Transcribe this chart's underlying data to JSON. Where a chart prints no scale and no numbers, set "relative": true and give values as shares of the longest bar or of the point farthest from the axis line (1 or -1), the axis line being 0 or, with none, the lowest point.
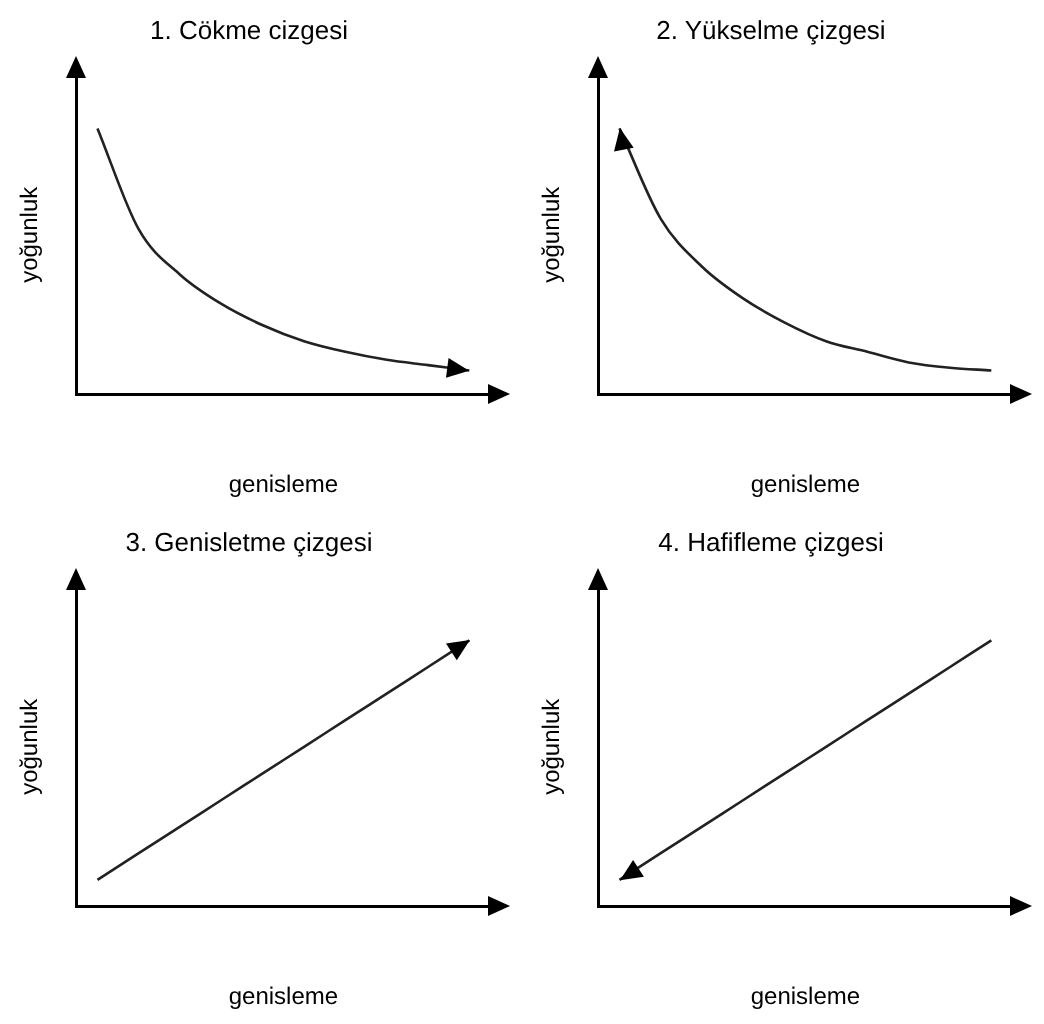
{
  "chart_data": [
    {
      "type": "line",
      "title": "1. Cökme cizgesi",
      "xlabel": "genisleme",
      "ylabel": "yoğunluk",
      "relative": true,
      "marker": "none",
      "categories": [
        null,
        null,
        null,
        null,
        null,
        null,
        null,
        null,
        null,
        null
      ],
      "series": [
        {
          "color": "#222222",
          "values": [
            1,
            0.62,
            0.45,
            0.34,
            0.26,
            0.2,
            0.16,
            0.13,
            0.11,
            0.09
          ]
        }
      ]
    },
    {
      "type": "line",
      "title": "2. Yükselme çizgesi",
      "xlabel": "genisleme",
      "ylabel": "yoğunluk",
      "relative": true,
      "marker": "none",
      "categories": [
        null,
        null,
        null,
        null,
        null,
        null,
        null,
        null,
        null,
        null
      ],
      "series": [
        {
          "color": "#222222",
          "values": [
            1,
            0.66,
            0.48,
            0.36,
            0.27,
            0.2,
            0.16,
            0.12,
            0.1,
            0.09
          ]
        }
      ]
    },
    {
      "type": "line",
      "title": "3. Genisletme çizgesi",
      "xlabel": "genisleme",
      "ylabel": "yoğunluk",
      "relative": true,
      "marker": "none",
      "categories": [
        null,
        null,
        null,
        null,
        null,
        null,
        null,
        null,
        null,
        null
      ],
      "series": [
        {
          "color": "#222222",
          "values": [
            0.1,
            0.2,
            0.3,
            0.4,
            0.5,
            0.6,
            0.7,
            0.8,
            0.9,
            1
          ]
        }
      ]
    },
    {
      "type": "line",
      "title": "4. Hafifleme çizgesi",
      "xlabel": "genisleme",
      "ylabel": "yoğunluk",
      "relative": true,
      "marker": "none",
      "categories": [
        null,
        null,
        null,
        null,
        null,
        null,
        null,
        null,
        null,
        null
      ],
      "series": [
        {
          "color": "#222222",
          "values": [
            0.1,
            0.2,
            0.3,
            0.4,
            0.5,
            0.6,
            0.7,
            0.8,
            0.9,
            1
          ]
        }
      ]
    }
  ]
}
